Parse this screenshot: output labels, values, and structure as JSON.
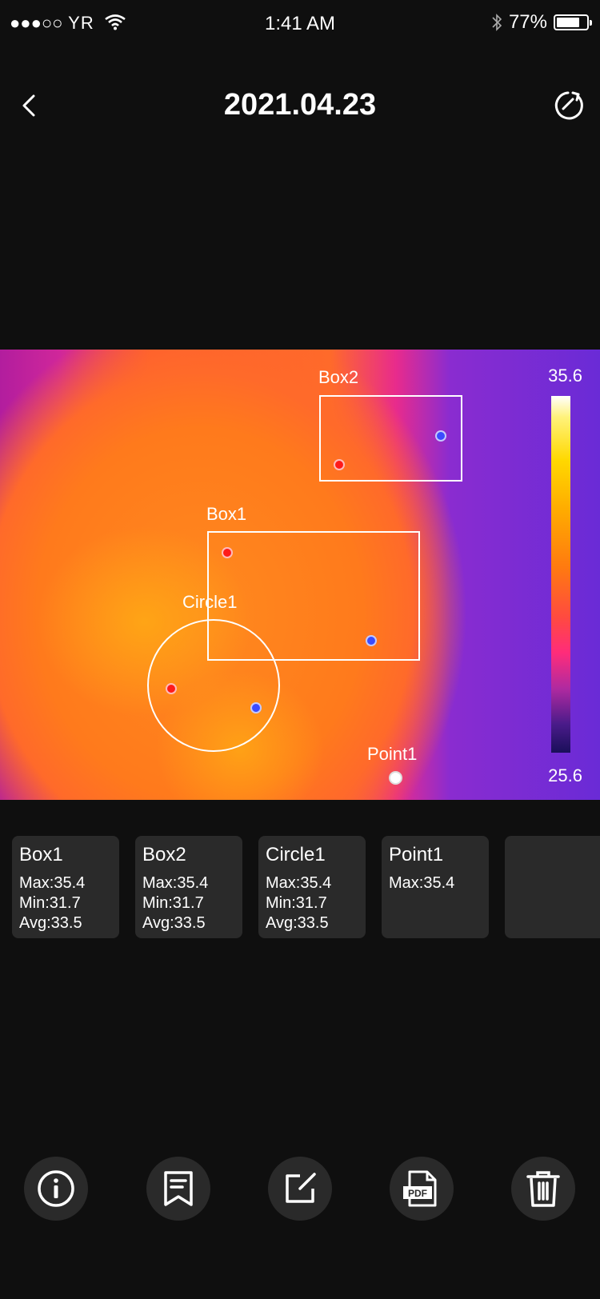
{
  "status_bar": {
    "carrier": "YR",
    "signal_dots": "●●●○○",
    "time": "1:41 AM",
    "battery_percent": "77%",
    "battery_level": 0.77
  },
  "nav": {
    "title": "2021.04.23",
    "back_icon": "chevron-left-icon",
    "refresh_icon": "refresh-icon"
  },
  "thermal": {
    "scale_max": "35.6",
    "scale_min": "25.6",
    "labels": {
      "box2": "Box2",
      "box1": "Box1",
      "circle1": "Circle1",
      "point1": "Point1"
    }
  },
  "cards": [
    {
      "name": "Box1",
      "max": "Max:35.4",
      "min": "Min:31.7",
      "avg": "Avg:33.5"
    },
    {
      "name": "Box2",
      "max": "Max:35.4",
      "min": "Min:31.7",
      "avg": "Avg:33.5"
    },
    {
      "name": "Circle1",
      "max": "Max:35.4",
      "min": "Min:31.7",
      "avg": "Avg:33.5"
    },
    {
      "name": "Point1",
      "max": "Max:35.4"
    }
  ],
  "toolbar": {
    "buttons": [
      "info-icon",
      "note-icon",
      "edit-icon",
      "pdf-icon",
      "trash-icon"
    ],
    "pdf_text": "PDF"
  }
}
